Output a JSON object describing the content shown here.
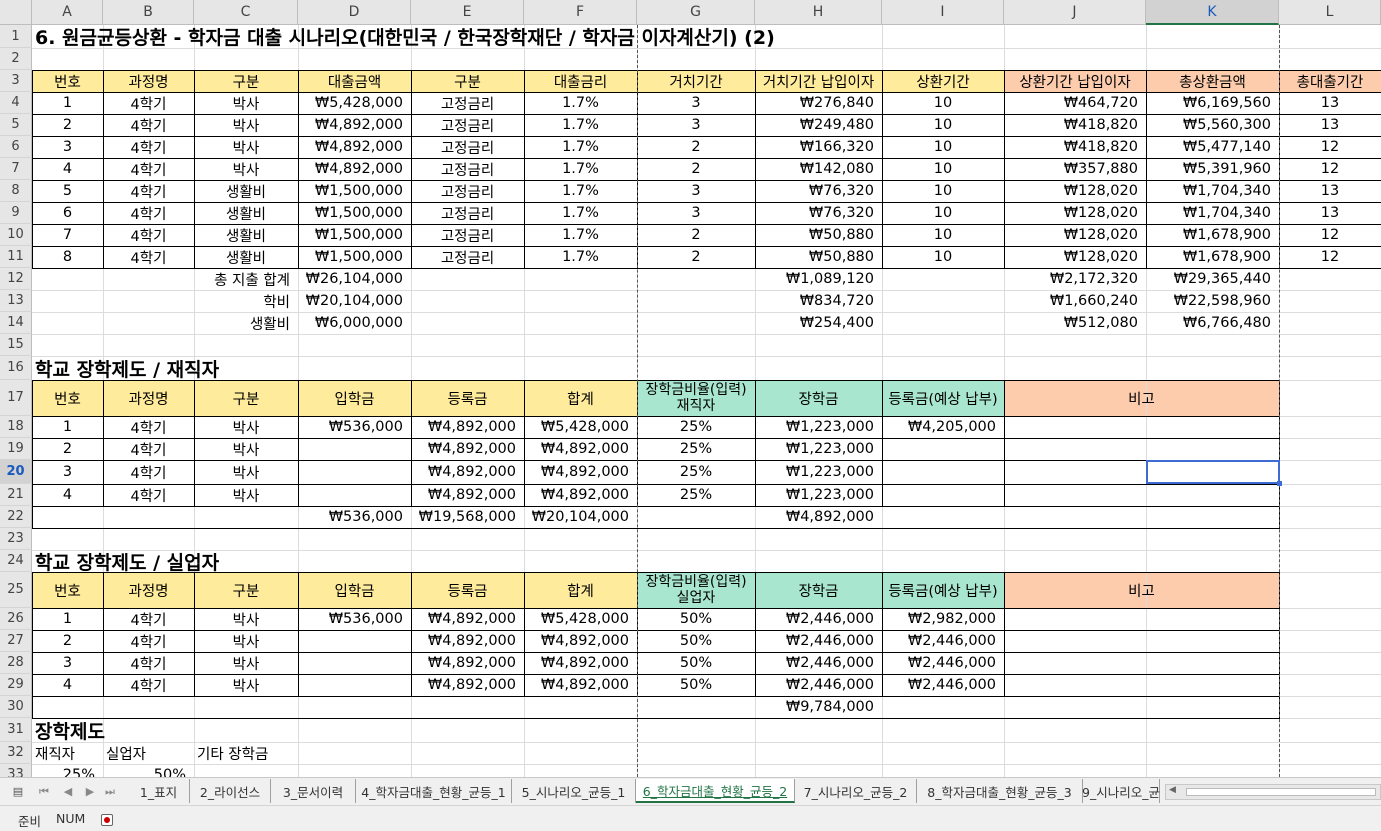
{
  "columns": [
    "A",
    "B",
    "C",
    "D",
    "E",
    "F",
    "G",
    "H",
    "I",
    "J",
    "K",
    "L"
  ],
  "active_column": "K",
  "active_row": "20",
  "rows": [
    "1",
    "2",
    "3",
    "4",
    "5",
    "6",
    "7",
    "8",
    "9",
    "10",
    "11",
    "12",
    "13",
    "14",
    "15",
    "16",
    "17",
    "18",
    "19",
    "20",
    "21",
    "22",
    "23",
    "24",
    "25",
    "26",
    "27",
    "28",
    "29",
    "30",
    "31",
    "32",
    "33"
  ],
  "colors": {
    "header_yellow": "#ffeb9c",
    "header_green": "#a9e6cf",
    "header_orange": "#fcccad",
    "selection": "#3c6bd6",
    "active_tab": "#217346"
  },
  "title": "6. 원금균등상환 - 학자금 대출 시나리오(대한민국 / 한국장학재단 / 학자금 이자계산기) (2)",
  "loan": {
    "headers": [
      "번호",
      "과정명",
      "구분",
      "대출금액",
      "구분",
      "대출금리",
      "거치기간",
      "거치기간 납입이자",
      "상환기간",
      "상환기간 납입이자",
      "총상환금액",
      "총대출기간"
    ],
    "rows": [
      [
        "1",
        "4학기",
        "박사",
        "₩5,428,000",
        "고정금리",
        "1.7%",
        "3",
        "₩276,840",
        "10",
        "₩464,720",
        "₩6,169,560",
        "13"
      ],
      [
        "2",
        "4학기",
        "박사",
        "₩4,892,000",
        "고정금리",
        "1.7%",
        "3",
        "₩249,480",
        "10",
        "₩418,820",
        "₩5,560,300",
        "13"
      ],
      [
        "3",
        "4학기",
        "박사",
        "₩4,892,000",
        "고정금리",
        "1.7%",
        "2",
        "₩166,320",
        "10",
        "₩418,820",
        "₩5,477,140",
        "12"
      ],
      [
        "4",
        "4학기",
        "박사",
        "₩4,892,000",
        "고정금리",
        "1.7%",
        "2",
        "₩142,080",
        "10",
        "₩357,880",
        "₩5,391,960",
        "12"
      ],
      [
        "5",
        "4학기",
        "생활비",
        "₩1,500,000",
        "고정금리",
        "1.7%",
        "3",
        "₩76,320",
        "10",
        "₩128,020",
        "₩1,704,340",
        "13"
      ],
      [
        "6",
        "4학기",
        "생활비",
        "₩1,500,000",
        "고정금리",
        "1.7%",
        "3",
        "₩76,320",
        "10",
        "₩128,020",
        "₩1,704,340",
        "13"
      ],
      [
        "7",
        "4학기",
        "생활비",
        "₩1,500,000",
        "고정금리",
        "1.7%",
        "2",
        "₩50,880",
        "10",
        "₩128,020",
        "₩1,678,900",
        "12"
      ],
      [
        "8",
        "4학기",
        "생활비",
        "₩1,500,000",
        "고정금리",
        "1.7%",
        "2",
        "₩50,880",
        "10",
        "₩128,020",
        "₩1,678,900",
        "12"
      ]
    ],
    "summary": [
      {
        "label": "총 지출 합계",
        "amount": "₩26,104,000",
        "grace": "₩1,089,120",
        "repay": "₩2,172,320",
        "total": "₩29,365,440"
      },
      {
        "label": "학비",
        "amount": "₩20,104,000",
        "grace": "₩834,720",
        "repay": "₩1,660,240",
        "total": "₩22,598,960"
      },
      {
        "label": "생활비",
        "amount": "₩6,000,000",
        "grace": "₩254,400",
        "repay": "₩512,080",
        "total": "₩6,766,480"
      }
    ]
  },
  "employed": {
    "title": "학교 장학제도 / 재직자",
    "headers": [
      "번호",
      "과정명",
      "구분",
      "입학금",
      "등록금",
      "합계",
      "장학금비율(입력)",
      "재직자",
      "장학금",
      "등록금(예상 납부)",
      "비고"
    ],
    "rows": [
      [
        "1",
        "4학기",
        "박사",
        "₩536,000",
        "₩4,892,000",
        "₩5,428,000",
        "25%",
        "₩1,223,000",
        "₩4,205,000"
      ],
      [
        "2",
        "4학기",
        "박사",
        "",
        "₩4,892,000",
        "₩4,892,000",
        "25%",
        "₩1,223,000",
        ""
      ],
      [
        "3",
        "4학기",
        "박사",
        "",
        "₩4,892,000",
        "₩4,892,000",
        "25%",
        "₩1,223,000",
        ""
      ],
      [
        "4",
        "4학기",
        "박사",
        "",
        "₩4,892,000",
        "₩4,892,000",
        "25%",
        "₩1,223,000",
        ""
      ]
    ],
    "totals": {
      "entrance": "₩536,000",
      "tuition": "₩19,568,000",
      "sum": "₩20,104,000",
      "scholarship": "₩4,892,000"
    }
  },
  "unemployed": {
    "title": "학교 장학제도 / 실업자",
    "headers": [
      "번호",
      "과정명",
      "구분",
      "입학금",
      "등록금",
      "합계",
      "장학금비율(입력)",
      "실업자",
      "장학금",
      "등록금(예상 납부)",
      "비고"
    ],
    "rows": [
      [
        "1",
        "4학기",
        "박사",
        "₩536,000",
        "₩4,892,000",
        "₩5,428,000",
        "50%",
        "₩2,446,000",
        "₩2,982,000"
      ],
      [
        "2",
        "4학기",
        "박사",
        "",
        "₩4,892,000",
        "₩4,892,000",
        "50%",
        "₩2,446,000",
        "₩2,446,000"
      ],
      [
        "3",
        "4학기",
        "박사",
        "",
        "₩4,892,000",
        "₩4,892,000",
        "50%",
        "₩2,446,000",
        "₩2,446,000"
      ],
      [
        "4",
        "4학기",
        "박사",
        "",
        "₩4,892,000",
        "₩4,892,000",
        "50%",
        "₩2,446,000",
        "₩2,446,000"
      ]
    ],
    "totals": {
      "scholarship": "₩9,784,000"
    }
  },
  "scholarship": {
    "title": "장학제도",
    "labels": [
      "재직자",
      "실업자",
      "기타 장학금"
    ],
    "values": [
      "25%",
      "50%"
    ]
  },
  "sheet_tabs": [
    "1_표지",
    "2_라이선스",
    "3_문서이력",
    "4_학자금대출_현황_균등_1",
    "5_시나리오_균등_1",
    "6_학자금대출_현황_균등_2",
    "7_시나리오_균등_2",
    "8_학자금대출_현황_균등_3",
    "9_시나리오_균"
  ],
  "active_tab": "6_학자금대출_현황_균등_2",
  "status": {
    "mode": "준비",
    "num": "NUM"
  }
}
